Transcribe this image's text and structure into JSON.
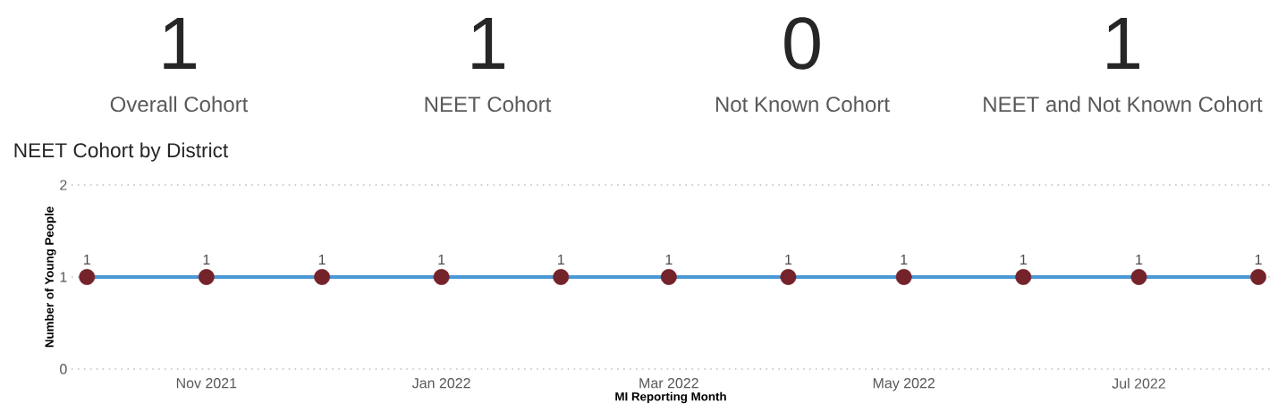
{
  "chart_data": [
    {
      "type": "other",
      "categories": [
        "Overall Cohort",
        "NEET Cohort",
        "Not Known Cohort",
        "NEET and Not Known Cohort"
      ],
      "values": [
        1,
        1,
        0,
        1
      ],
      "data_labels": true
    },
    {
      "type": "line",
      "title": "NEET Cohort by District",
      "xlabel": "MI Reporting Month",
      "ylabel": "Number of Young People",
      "x": [
        "2021-10-01",
        "2021-11-01",
        "2021-12-01",
        "2022-01-01",
        "2022-02-01",
        "2022-03-01",
        "2022-04-01",
        "2022-05-01",
        "2022-06-01",
        "2022-07-01",
        "2022-08-01"
      ],
      "series": [
        {
          "color": "#4a98d6",
          "colors": [
            "#74232a",
            "#74232a",
            "#74232a",
            "#74232a",
            "#74232a",
            "#74232a",
            "#74232a",
            "#74232a",
            "#74232a",
            "#74232a",
            "#74232a"
          ],
          "values": [
            1,
            1,
            1,
            1,
            1,
            1,
            1,
            1,
            1,
            1,
            1
          ]
        }
      ],
      "xlim": [
        "2021-09-27",
        "2022-08-04"
      ],
      "xticks": [
        {
          "value": "2021-11-01",
          "label": "Nov 2021"
        },
        {
          "value": "2022-01-01",
          "label": "Jan 2022"
        },
        {
          "value": "2022-03-01",
          "label": "Mar 2022"
        },
        {
          "value": "2022-05-01",
          "label": "May 2022"
        },
        {
          "value": "2022-07-01",
          "label": "Jul 2022"
        }
      ],
      "ylim": [
        0,
        2
      ],
      "yticks": [
        0,
        1,
        2
      ],
      "grid": "y",
      "marker": "circle",
      "line_style": "solid",
      "data_labels": true
    }
  ]
}
